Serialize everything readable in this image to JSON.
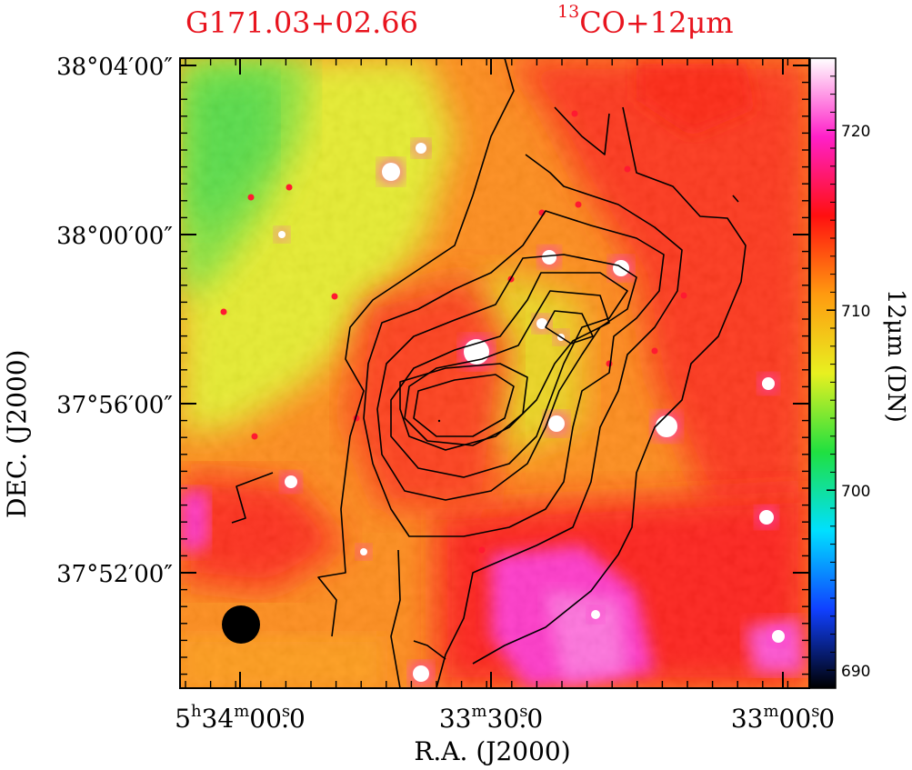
{
  "header": {
    "source_name": "G171.03+02.66",
    "overlay_sup": "13",
    "overlay_text": "CO+12μm"
  },
  "chart_data": {
    "type": "heatmap",
    "title": "G171.03+02.66",
    "subtitle": "13CO+12μm",
    "xlabel": "R.A. (J2000)",
    "ylabel": "DEC. (J2000)",
    "colorbar_label": "12μm (DN)",
    "x_ticks": [
      {
        "h": "5",
        "m": "34",
        "s": "00",
        "f": "0"
      },
      {
        "h": "",
        "m": "33",
        "s": "30",
        "f": "0"
      },
      {
        "h": "",
        "m": "33",
        "s": "00",
        "f": "0"
      }
    ],
    "y_ticks": [
      "38°04′00″",
      "38°00′00″",
      "37°56′00″",
      "37°52′00″"
    ],
    "colorbar_ticks": [
      720,
      710,
      700,
      690
    ],
    "colorbar_range": [
      689,
      724
    ],
    "colormap": [
      "#000000",
      "#1040ff",
      "#00e0ff",
      "#20e040",
      "#e8f020",
      "#ff9a10",
      "#ff1010",
      "#ff20c8",
      "#ffffff"
    ],
    "contour_levels": 9,
    "beam": "filled-circle",
    "background_color": "#ffffff",
    "contour_color": "#000000",
    "title_color": "#e8141e"
  }
}
